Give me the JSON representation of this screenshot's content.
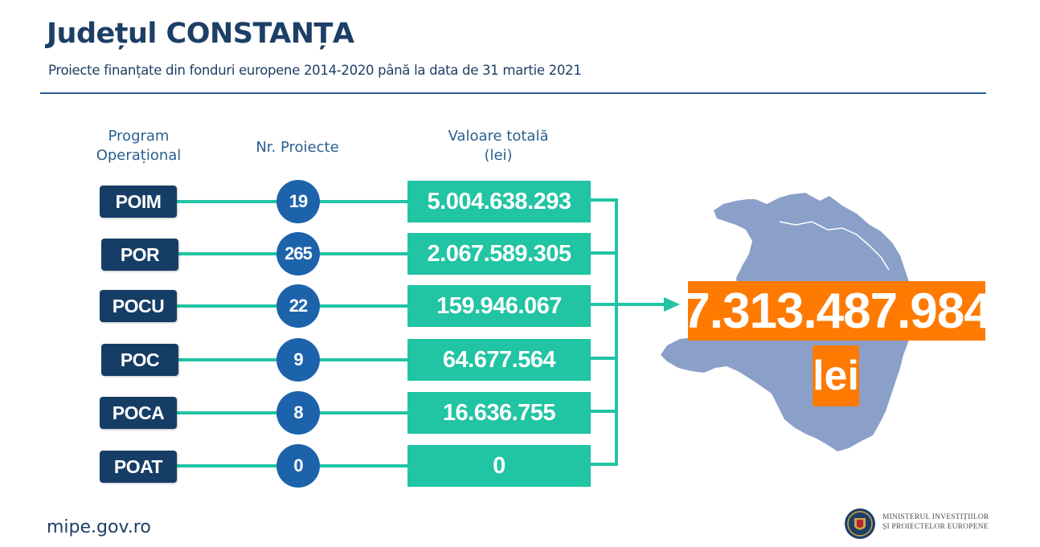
{
  "header": {
    "title": "Județul CONSTANȚA",
    "subtitle": "Proiecte finanțate din fonduri europene 2014-2020 până la data de 31 martie 2021"
  },
  "columns": {
    "program_line1": "Program",
    "program_line2": "Operațional",
    "projects": "Nr. Proiecte",
    "value_line1": "Valoare totală",
    "value_line2": "(lei)"
  },
  "rows": [
    {
      "program": "POIM",
      "projects": "19",
      "value": "5.004.638.293"
    },
    {
      "program": "POR",
      "projects": "265",
      "value": "2.067.589.305"
    },
    {
      "program": "POCU",
      "projects": "22",
      "value": "159.946.067"
    },
    {
      "program": "POC",
      "projects": "9",
      "value": "64.677.564"
    },
    {
      "program": "POCA",
      "projects": "8",
      "value": "16.636.755"
    },
    {
      "program": "POAT",
      "projects": "0",
      "value": "0"
    }
  ],
  "total": {
    "value": "7.313.487.984",
    "unit": "lei"
  },
  "footer": {
    "url": "mipe.gov.ro",
    "ministry_line1": "MINISTERUL INVESTIȚIILOR",
    "ministry_line2": "ȘI PROIECTELOR EUROPENE",
    "logo_icon": "romania-coat-of-arms-icon"
  },
  "colors": {
    "navy": "#163d66",
    "blue": "#1d63ac",
    "teal": "#21c4a3",
    "orange": "#ff7a00",
    "map": "#8aa0c9"
  }
}
